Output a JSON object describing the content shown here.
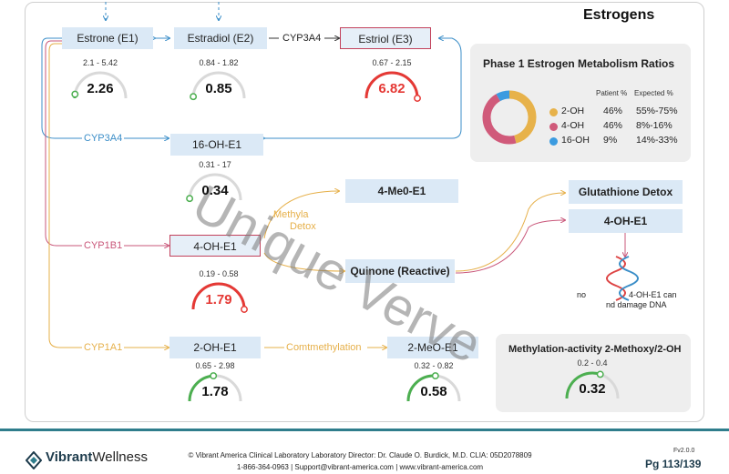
{
  "title": "Estrogens",
  "nodes": {
    "estrone": "Estrone (E1)",
    "estradiol": "Estradiol (E2)",
    "estriol": "Estriol (E3)",
    "oh16": "16-OH-E1",
    "oh4": "4-OH-E1",
    "oh2": "2-OH-E1",
    "me4": "4-Me0-E1",
    "quinone": "Quinone (Reactive)",
    "glutathione": "Glutathione Detox",
    "oh4_right": "4-OH-E1",
    "me2": "2-MeO-E1"
  },
  "labels": {
    "cyp3a4_top": "CYP3A4",
    "cyp3a4_left": "CYP3A4",
    "cyp1b1": "CYP1B1",
    "cyp1a1": "CYP1A1",
    "methyla": "Methyla",
    "detox": "Detox",
    "comt": "Comtmethylation",
    "dna_note_1": "no",
    "dna_note_2": "4-OH-E1 can",
    "dna_note_3": "nd damage DNA"
  },
  "gauges": {
    "estrone": {
      "range": "2.1 - 5.42",
      "value": "2.26",
      "fraction": 0.05,
      "status": "normal"
    },
    "estradiol": {
      "range": "0.84 - 1.82",
      "value": "0.85",
      "fraction": 0.02,
      "status": "normal"
    },
    "estriol": {
      "range": "0.67 - 2.15",
      "value": "6.82",
      "fraction": 1.0,
      "status": "high"
    },
    "oh16": {
      "range": "0.31 - 17",
      "value": "0.34",
      "fraction": 0.02,
      "status": "normal"
    },
    "oh4": {
      "range": "0.19 - 0.58",
      "value": "1.79",
      "fraction": 1.0,
      "status": "high"
    },
    "oh2": {
      "range": "0.65 - 2.98",
      "value": "1.78",
      "fraction": 0.48,
      "status": "normal"
    },
    "me2": {
      "range": "0.32 - 0.82",
      "value": "0.58",
      "fraction": 0.52,
      "status": "normal"
    },
    "methylation": {
      "range": "0.2 - 0.4",
      "value": "0.32",
      "fraction": 0.6,
      "status": "normal"
    }
  },
  "ratios": {
    "title": "Phase 1 Estrogen Metabolism Ratios",
    "head_patient": "Patient %",
    "head_expected": "Expected %",
    "rows": [
      {
        "name": "2-OH",
        "patient": "46%",
        "expected": "55%-75%",
        "color": "#e7b24a",
        "pct": 46
      },
      {
        "name": "4-OH",
        "patient": "46%",
        "expected": "8%-16%",
        "color": "#d05a7a",
        "pct": 46
      },
      {
        "name": "16-OH",
        "patient": "9%",
        "expected": "14%-33%",
        "color": "#3b9be0",
        "pct": 9
      }
    ]
  },
  "methylation_box": {
    "title": "Methylation-activity 2-Methoxy/2-OH"
  },
  "watermark": "Unique Verve",
  "footer": {
    "logo_bold": "Vibrant",
    "logo_rest": "Wellness",
    "line1": "© Vibrant America Clinical Laboratory Laboratory Director: Dr. Claude O. Burdick, M.D. CLIA: 05D2078809",
    "line2": "1-866-364-0963 | Support@vibrant-america.com | www.vibrant-america.com",
    "version": "Fv2.0.0",
    "page": "Pg 113/139"
  },
  "colors": {
    "normal": "#4caf50",
    "high": "#e53935",
    "blue_line": "#3b8ec8",
    "pink_line": "#c9577a",
    "orange_line": "#e6b04a"
  }
}
